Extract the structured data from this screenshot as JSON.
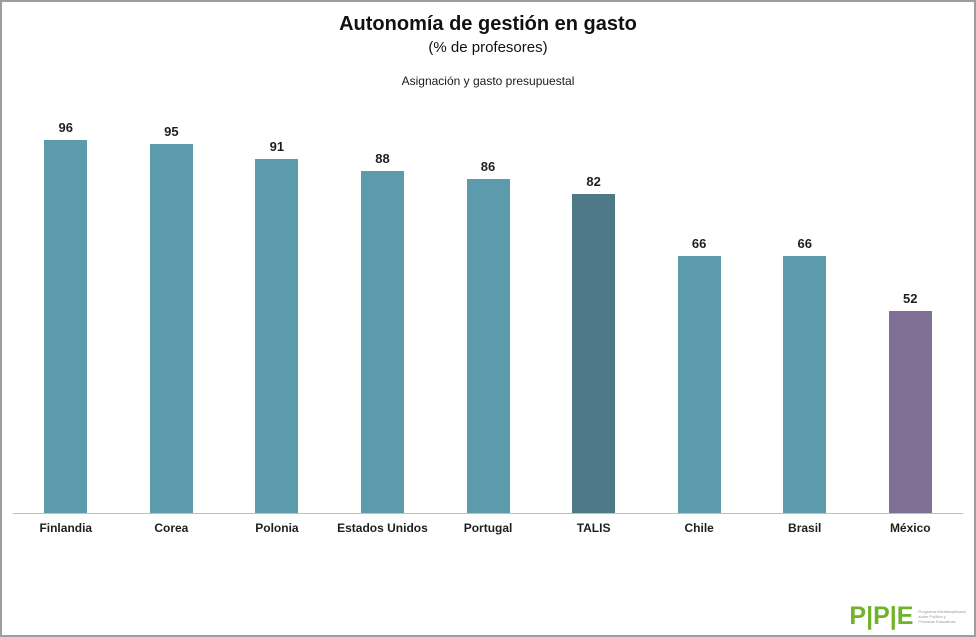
{
  "window": {
    "background": "#ffffff",
    "border_color": "#9E9E9E"
  },
  "chart_data": {
    "type": "bar",
    "title": "Autonomía de gestión en gasto",
    "subtitle": "(% de profesores)",
    "series_label": "Asignación y gasto presupuestal",
    "categories": [
      "Finlandia",
      "Corea",
      "Polonia",
      "Estados Unidos",
      "Portugal",
      "TALIS",
      "Chile",
      "Brasil",
      "México"
    ],
    "values": [
      96,
      95,
      91,
      88,
      86,
      82,
      66,
      66,
      52
    ],
    "bar_colors": [
      "#5B9BAB",
      "#5B9BAB",
      "#5B9BAB",
      "#5B9BAB",
      "#5B9BAB",
      "#4E7987",
      "#5B9BAB",
      "#5B9BAB",
      "#806F94"
    ],
    "highlight_colors": {
      "default": "#5B9BAB",
      "talis": "#4E7987",
      "mexico": "#806F94"
    },
    "ylim": [
      0,
      100
    ],
    "grid": false,
    "legend": "none",
    "data_labels": true,
    "axis_line_color": "#BFBFBF",
    "xlabel": "",
    "ylabel": ""
  },
  "logo": {
    "text": "P|P|E",
    "color": "#71B22B",
    "tagline_lines": [
      "Programa Interdisciplinario",
      "sobre Política y",
      "Prácticas Educativas"
    ]
  }
}
